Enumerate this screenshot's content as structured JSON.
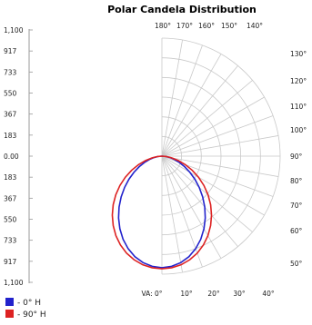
{
  "chart_data": {
    "type": "line",
    "title": "Polar Candela Distribution",
    "radial_tick_labels": [
      "1,100",
      "917",
      "733",
      "550",
      "367",
      "183",
      "0.00",
      "183",
      "367",
      "550",
      "733",
      "917",
      "1,100"
    ],
    "angle_labels_top": [
      "180°",
      "170°",
      "160°",
      "150°",
      "140°"
    ],
    "angle_labels_right": [
      "130°",
      "120°",
      "110°",
      "100°",
      "90°",
      "80°",
      "70°",
      "60°",
      "50°"
    ],
    "angle_labels_bottom": [
      "VA: 0°",
      "10°",
      "20°",
      "30°",
      "40°"
    ],
    "grid": true,
    "rmax": 1100,
    "legend_position": "bottom-left",
    "series": [
      {
        "name": "- 0° H",
        "color": "#2222cc",
        "angles_deg": [
          0,
          5,
          10,
          15,
          20,
          25,
          30,
          35,
          40,
          45,
          50,
          55,
          60,
          65,
          70,
          75,
          80,
          85,
          90
        ],
        "values": [
          1040,
          1031,
          1008,
          970,
          918,
          855,
          782,
          703,
          620,
          536,
          453,
          374,
          300,
          233,
          173,
          120,
          75,
          36,
          0
        ]
      },
      {
        "name": "- 90° H",
        "color": "#dd2222",
        "angles_deg": [
          0,
          5,
          10,
          15,
          20,
          25,
          30,
          35,
          40,
          45,
          50,
          55,
          60,
          65,
          70,
          75,
          80,
          85,
          90
        ],
        "values": [
          1050,
          1044,
          1028,
          1000,
          962,
          913,
          856,
          790,
          718,
          641,
          560,
          477,
          393,
          311,
          232,
          158,
          92,
          40,
          0
        ]
      }
    ]
  }
}
